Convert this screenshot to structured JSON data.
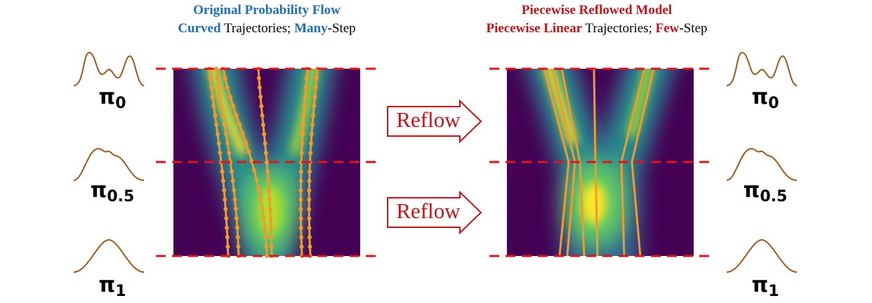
{
  "left": {
    "title": "Original Probability Flow",
    "subtitle": [
      "Curved",
      " Trajectories; ",
      "Many",
      "-Step"
    ]
  },
  "right": {
    "title": "Piecewise Reflowed Model",
    "subtitle": [
      "Piecewise Linear",
      " Trajectories; ",
      "Few",
      "-Step"
    ]
  },
  "arrows": [
    "Reflow",
    "Reflow"
  ],
  "distributions": [
    {
      "symbol": "π",
      "subscript": "0"
    },
    {
      "symbol": "π",
      "subscript": "0.5"
    },
    {
      "symbol": "π",
      "subscript": "1"
    }
  ]
}
